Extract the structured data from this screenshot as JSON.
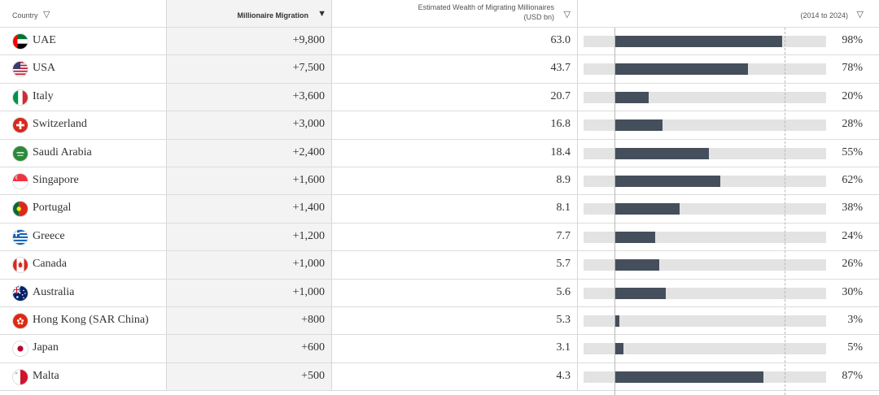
{
  "header": {
    "country_label": "Country",
    "migration_label": "Millionaire Migration",
    "wealth_label_line1": "Estimated Wealth of Migrating Millionaires",
    "wealth_label_line2": "(USD bn)",
    "growth_label": "(2014 to 2024)",
    "filter_icon": "▽",
    "sort_icon": "▼"
  },
  "colors": {
    "bar_fill": "#454f5c",
    "bar_track": "#e3e3e3",
    "highlight_column": "#f3f3f3"
  },
  "chart_data": {
    "type": "table",
    "columns": [
      "Country",
      "Millionaire Migration",
      "Estimated Wealth of Migrating Millionaires (USD bn)",
      "(2014 to 2024)"
    ],
    "growth_range": [
      0,
      100
    ],
    "rows": [
      {
        "country": "UAE",
        "migration": "+9,800",
        "wealth": "63.0",
        "growth": 98,
        "growth_label": "98%",
        "flag": "uae-flag-icon"
      },
      {
        "country": "USA",
        "migration": "+7,500",
        "wealth": "43.7",
        "growth": 78,
        "growth_label": "78%",
        "flag": "usa-flag-icon"
      },
      {
        "country": "Italy",
        "migration": "+3,600",
        "wealth": "20.7",
        "growth": 20,
        "growth_label": "20%",
        "flag": "italy-flag-icon"
      },
      {
        "country": "Switzerland",
        "migration": "+3,000",
        "wealth": "16.8",
        "growth": 28,
        "growth_label": "28%",
        "flag": "switzerland-flag-icon"
      },
      {
        "country": "Saudi Arabia",
        "migration": "+2,400",
        "wealth": "18.4",
        "growth": 55,
        "growth_label": "55%",
        "flag": "saudi-arabia-flag-icon"
      },
      {
        "country": "Singapore",
        "migration": "+1,600",
        "wealth": "8.9",
        "growth": 62,
        "growth_label": "62%",
        "flag": "singapore-flag-icon"
      },
      {
        "country": "Portugal",
        "migration": "+1,400",
        "wealth": "8.1",
        "growth": 38,
        "growth_label": "38%",
        "flag": "portugal-flag-icon"
      },
      {
        "country": "Greece",
        "migration": "+1,200",
        "wealth": "7.7",
        "growth": 24,
        "growth_label": "24%",
        "flag": "greece-flag-icon"
      },
      {
        "country": "Canada",
        "migration": "+1,000",
        "wealth": "5.7",
        "growth": 26,
        "growth_label": "26%",
        "flag": "canada-flag-icon"
      },
      {
        "country": "Australia",
        "migration": "+1,000",
        "wealth": "5.6",
        "growth": 30,
        "growth_label": "30%",
        "flag": "australia-flag-icon"
      },
      {
        "country": "Hong Kong (SAR China)",
        "migration": "+800",
        "wealth": "5.3",
        "growth": 3,
        "growth_label": "3%",
        "flag": "hong-kong-flag-icon"
      },
      {
        "country": "Japan",
        "migration": "+600",
        "wealth": "3.1",
        "growth": 5,
        "growth_label": "5%",
        "flag": "japan-flag-icon"
      },
      {
        "country": "Malta",
        "migration": "+500",
        "wealth": "4.3",
        "growth": 87,
        "growth_label": "87%",
        "flag": "malta-flag-icon"
      }
    ]
  }
}
